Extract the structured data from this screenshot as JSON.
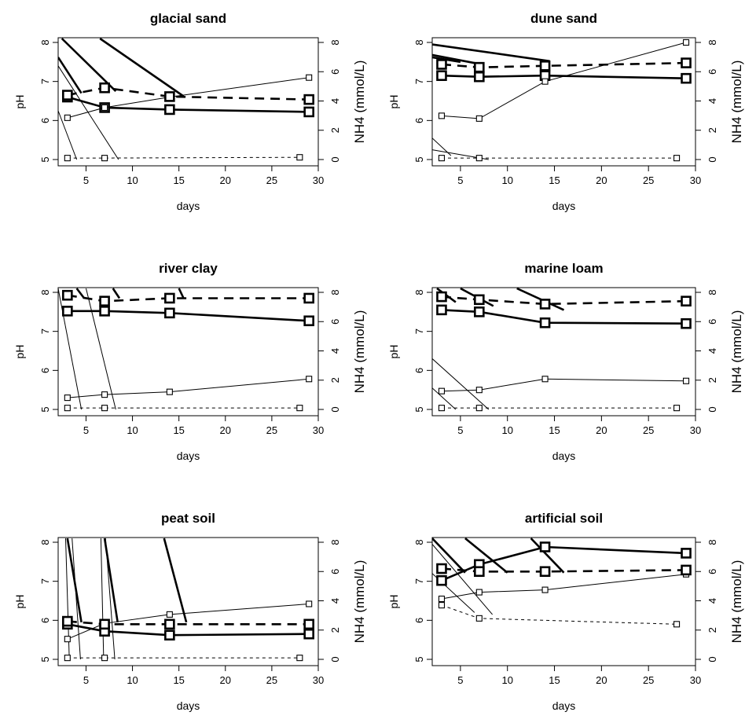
{
  "chart_data": [
    {
      "type": "line",
      "title": "glacial sand",
      "xlabel": "days",
      "ylabel": "pH",
      "ylabel_right": "NH4 (mmol/L)",
      "xlim": [
        2,
        30
      ],
      "ylim": [
        5,
        8
      ],
      "ylim_right": [
        0,
        8
      ],
      "xticks": [
        5,
        10,
        15,
        20,
        25,
        30
      ],
      "yticks": [
        5,
        6,
        7,
        8
      ],
      "yticks_right": [
        0,
        2,
        4,
        6,
        8
      ],
      "series": [
        {
          "axis": "left",
          "style": "thick-solid",
          "x": [
            3,
            7,
            14,
            29
          ],
          "values": [
            6.6,
            6.33,
            6.28,
            6.22
          ]
        },
        {
          "axis": "left",
          "style": "thin-solid",
          "x": [
            3,
            7,
            14,
            29
          ],
          "values": [
            6.07,
            6.33,
            6.6,
            7.1
          ]
        },
        {
          "axis": "right",
          "style": "thick-dashed",
          "x": [
            3,
            7,
            14,
            29
          ],
          "values": [
            4.4,
            4.9,
            4.3,
            4.1
          ]
        },
        {
          "axis": "right",
          "style": "thin-dashed",
          "x": [
            3,
            7,
            28
          ],
          "values": [
            0.1,
            0.1,
            0.15
          ]
        }
      ],
      "decay_curves": [
        {
          "style": "thick",
          "x": [
            2.4,
            8.2
          ],
          "values": [
            8.1,
            6.75
          ]
        },
        {
          "style": "thick",
          "x": [
            6.5,
            15.5
          ],
          "values": [
            8.1,
            6.62
          ]
        },
        {
          "style": "thick",
          "x": [
            2.0,
            4.5
          ],
          "values": [
            7.62,
            6.7
          ]
        },
        {
          "style": "thin",
          "x": [
            2.0,
            8.5
          ],
          "values": [
            7.4,
            5.0
          ]
        },
        {
          "style": "thin",
          "x": [
            2.0,
            4.0
          ],
          "values": [
            6.25,
            5.0
          ]
        }
      ]
    },
    {
      "type": "line",
      "title": "dune sand",
      "xlabel": "days",
      "ylabel": "pH",
      "ylabel_right": "NH4 (mmol/L)",
      "xlim": [
        2,
        30
      ],
      "ylim": [
        5,
        8
      ],
      "ylim_right": [
        0,
        8
      ],
      "xticks": [
        5,
        10,
        15,
        20,
        25,
        30
      ],
      "yticks": [
        5,
        6,
        7,
        8
      ],
      "yticks_right": [
        0,
        2,
        4,
        6,
        8
      ],
      "series": [
        {
          "axis": "left",
          "style": "thick-solid",
          "x": [
            3,
            7,
            14,
            29
          ],
          "values": [
            7.15,
            7.12,
            7.15,
            7.08
          ]
        },
        {
          "axis": "left",
          "style": "thin-solid",
          "x": [
            3,
            7,
            14,
            29
          ],
          "values": [
            6.12,
            6.05,
            7.0,
            8.0
          ]
        },
        {
          "axis": "right",
          "style": "thick-dashed",
          "x": [
            3,
            7,
            14,
            29
          ],
          "values": [
            6.5,
            6.3,
            6.4,
            6.6
          ]
        },
        {
          "axis": "right",
          "style": "thin-dashed",
          "x": [
            3,
            7,
            28
          ],
          "values": [
            0.1,
            0.1,
            0.1
          ]
        }
      ],
      "decay_curves": [
        {
          "style": "thick",
          "x": [
            2.0,
            14.5
          ],
          "values": [
            7.95,
            7.52
          ]
        },
        {
          "style": "thick",
          "x": [
            2.0,
            7.0
          ],
          "values": [
            7.68,
            7.45
          ]
        },
        {
          "style": "thick",
          "x": [
            2.0,
            5.0
          ],
          "values": [
            7.62,
            7.5
          ]
        },
        {
          "style": "thin",
          "x": [
            2.0,
            4.0
          ],
          "values": [
            5.55,
            5.1
          ]
        },
        {
          "style": "thin",
          "x": [
            2.0,
            8.0
          ],
          "values": [
            5.25,
            5.0
          ]
        }
      ]
    },
    {
      "type": "line",
      "title": "river clay",
      "xlabel": "days",
      "ylabel": "pH",
      "ylabel_right": "NH4 (mmol/L)",
      "xlim": [
        2,
        30
      ],
      "ylim": [
        5,
        8
      ],
      "ylim_right": [
        0,
        8
      ],
      "xticks": [
        5,
        10,
        15,
        20,
        25,
        30
      ],
      "yticks": [
        5,
        6,
        7,
        8
      ],
      "yticks_right": [
        0,
        2,
        4,
        6,
        8
      ],
      "series": [
        {
          "axis": "left",
          "style": "thick-solid",
          "x": [
            3,
            7,
            14,
            29
          ],
          "values": [
            7.52,
            7.52,
            7.47,
            7.27
          ]
        },
        {
          "axis": "left",
          "style": "thin-solid",
          "x": [
            3,
            7,
            14,
            29
          ],
          "values": [
            5.3,
            5.38,
            5.45,
            5.78
          ]
        },
        {
          "axis": "right",
          "style": "thick-dashed",
          "x": [
            3,
            7,
            14,
            29
          ],
          "values": [
            7.8,
            7.4,
            7.6,
            7.6
          ]
        },
        {
          "axis": "right",
          "style": "thin-dashed",
          "x": [
            3,
            7,
            28
          ],
          "values": [
            0.1,
            0.1,
            0.1
          ]
        }
      ],
      "decay_curves": [
        {
          "style": "thick",
          "x": [
            4.0,
            4.8
          ],
          "values": [
            8.1,
            7.85
          ]
        },
        {
          "style": "thick",
          "x": [
            7.9,
            8.6
          ],
          "values": [
            8.1,
            7.85
          ]
        },
        {
          "style": "thick",
          "x": [
            15.0,
            15.5
          ],
          "values": [
            8.1,
            7.85
          ]
        },
        {
          "style": "thin",
          "x": [
            2.0,
            4.5
          ],
          "values": [
            8.1,
            5.0
          ]
        },
        {
          "style": "thin",
          "x": [
            5.0,
            8.2
          ],
          "values": [
            8.1,
            5.0
          ]
        }
      ]
    },
    {
      "type": "line",
      "title": "marine loam",
      "xlabel": "days",
      "ylabel": "pH",
      "ylabel_right": "NH4 (mmol/L)",
      "xlim": [
        2,
        30
      ],
      "ylim": [
        5,
        8
      ],
      "ylim_right": [
        0,
        8
      ],
      "xticks": [
        5,
        10,
        15,
        20,
        25,
        30
      ],
      "yticks": [
        5,
        6,
        7,
        8
      ],
      "yticks_right": [
        0,
        2,
        4,
        6,
        8
      ],
      "series": [
        {
          "axis": "left",
          "style": "thick-solid",
          "x": [
            3,
            7,
            14,
            29
          ],
          "values": [
            7.55,
            7.5,
            7.22,
            7.2
          ]
        },
        {
          "axis": "left",
          "style": "thin-solid",
          "x": [
            3,
            7,
            14,
            29
          ],
          "values": [
            5.47,
            5.5,
            5.78,
            5.73
          ]
        },
        {
          "axis": "right",
          "style": "thick-dashed",
          "x": [
            3,
            7,
            14,
            29
          ],
          "values": [
            7.7,
            7.5,
            7.2,
            7.4
          ]
        },
        {
          "axis": "right",
          "style": "thin-dashed",
          "x": [
            3,
            7,
            28
          ],
          "values": [
            0.1,
            0.1,
            0.1
          ]
        }
      ],
      "decay_curves": [
        {
          "style": "thick",
          "x": [
            2.5,
            4.5
          ],
          "values": [
            8.1,
            7.75
          ]
        },
        {
          "style": "thick",
          "x": [
            5.0,
            8.5
          ],
          "values": [
            8.1,
            7.65
          ]
        },
        {
          "style": "thick",
          "x": [
            11.0,
            16.0
          ],
          "values": [
            8.1,
            7.55
          ]
        },
        {
          "style": "thin",
          "x": [
            2.0,
            8.0
          ],
          "values": [
            6.3,
            5.0
          ]
        },
        {
          "style": "thin",
          "x": [
            2.0,
            4.5
          ],
          "values": [
            5.55,
            5.0
          ]
        }
      ]
    },
    {
      "type": "line",
      "title": "peat soil",
      "xlabel": "days",
      "ylabel": "pH",
      "ylabel_right": "NH4 (mmol/L)",
      "xlim": [
        2,
        30
      ],
      "ylim": [
        5,
        8
      ],
      "ylim_right": [
        0,
        8
      ],
      "xticks": [
        5,
        10,
        15,
        20,
        25,
        30
      ],
      "yticks": [
        5,
        6,
        7,
        8
      ],
      "yticks_right": [
        0,
        2,
        4,
        6,
        8
      ],
      "series": [
        {
          "axis": "left",
          "style": "thick-solid",
          "x": [
            3,
            7,
            14,
            29
          ],
          "values": [
            5.9,
            5.72,
            5.62,
            5.65
          ]
        },
        {
          "axis": "left",
          "style": "thin-solid",
          "x": [
            3,
            7,
            14,
            29
          ],
          "values": [
            5.52,
            5.92,
            6.15,
            6.42
          ]
        },
        {
          "axis": "right",
          "style": "thick-dashed",
          "x": [
            3,
            7,
            14,
            29
          ],
          "values": [
            2.6,
            2.4,
            2.4,
            2.4
          ]
        },
        {
          "axis": "right",
          "style": "thin-dashed",
          "x": [
            3,
            7,
            28
          ],
          "values": [
            0.1,
            0.1,
            0.1
          ]
        }
      ],
      "decay_curves": [
        {
          "style": "thick",
          "x": [
            3.0,
            4.5
          ],
          "values": [
            8.1,
            5.95
          ]
        },
        {
          "style": "thick",
          "x": [
            7.0,
            8.4
          ],
          "values": [
            8.1,
            5.95
          ]
        },
        {
          "style": "thick",
          "x": [
            13.4,
            15.8
          ],
          "values": [
            8.1,
            5.95
          ]
        },
        {
          "style": "thin",
          "x": [
            2.8,
            3.2
          ],
          "values": [
            8.1,
            5.0
          ]
        },
        {
          "style": "thin",
          "x": [
            3.5,
            4.4
          ],
          "values": [
            8.1,
            5.0
          ]
        },
        {
          "style": "thin",
          "x": [
            6.6,
            6.9
          ],
          "values": [
            8.1,
            5.0
          ]
        },
        {
          "style": "thin",
          "x": [
            7.1,
            8.1
          ],
          "values": [
            8.1,
            5.0
          ]
        }
      ]
    },
    {
      "type": "line",
      "title": "artificial soil",
      "xlabel": "days",
      "ylabel": "pH",
      "ylabel_right": "NH4 (mmol/L)",
      "xlim": [
        2,
        30
      ],
      "ylim": [
        5,
        8
      ],
      "ylim_right": [
        0,
        8
      ],
      "xticks": [
        5,
        10,
        15,
        20,
        25,
        30
      ],
      "yticks": [
        5,
        6,
        7,
        8
      ],
      "yticks_right": [
        0,
        2,
        4,
        6,
        8
      ],
      "series": [
        {
          "axis": "left",
          "style": "thick-solid",
          "x": [
            3,
            7,
            14,
            29
          ],
          "values": [
            7.02,
            7.43,
            7.88,
            7.72
          ]
        },
        {
          "axis": "left",
          "style": "thin-solid",
          "x": [
            3,
            7,
            14,
            29
          ],
          "values": [
            6.55,
            6.72,
            6.78,
            7.18
          ]
        },
        {
          "axis": "right",
          "style": "thick-dashed",
          "x": [
            3,
            7,
            14,
            29
          ],
          "values": [
            6.2,
            6.0,
            6.0,
            6.1
          ]
        },
        {
          "axis": "right",
          "style": "thin-dashed",
          "x": [
            3,
            7,
            28
          ],
          "values": [
            3.7,
            2.8,
            2.4
          ]
        }
      ],
      "decay_curves": [
        {
          "style": "thick",
          "x": [
            2.0,
            5.5
          ],
          "values": [
            8.1,
            7.22
          ]
        },
        {
          "style": "thick",
          "x": [
            5.5,
            10.0
          ],
          "values": [
            8.1,
            7.22
          ]
        },
        {
          "style": "thick",
          "x": [
            12.5,
            16.0
          ],
          "values": [
            8.1,
            7.22
          ]
        },
        {
          "style": "thin",
          "x": [
            2.0,
            8.4
          ],
          "values": [
            7.95,
            6.15
          ]
        },
        {
          "style": "thin",
          "x": [
            2.0,
            6.5
          ],
          "values": [
            7.2,
            6.2
          ]
        }
      ]
    }
  ]
}
